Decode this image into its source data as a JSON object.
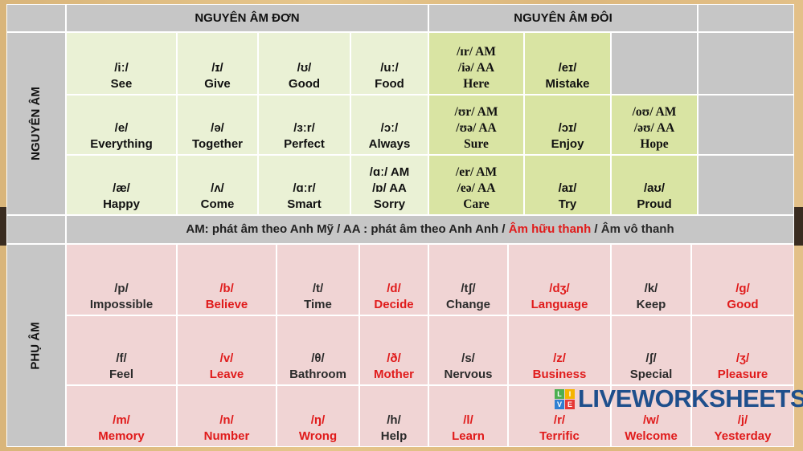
{
  "header": {
    "monophthongs": "NGUYÊN ÂM ĐƠN",
    "diphthongs": "NGUYÊN ÂM ĐÔI"
  },
  "side_labels": {
    "vowels": "NGUYÊN ÂM",
    "consonants": "PHỤ ÂM"
  },
  "vowels": [
    [
      {
        "lines": [
          "/iː/",
          "See"
        ]
      },
      {
        "lines": [
          "/ɪ/",
          "Give"
        ]
      },
      {
        "lines": [
          "/ʊ/",
          "Good"
        ]
      },
      {
        "lines": [
          "/uː/",
          "Food"
        ]
      },
      {
        "lines": [
          "/ɪr/ AM",
          "/iə/ AA",
          "Here"
        ],
        "serif": true
      },
      {
        "lines": [
          "/eɪ/",
          "Mistake"
        ]
      },
      null
    ],
    [
      {
        "lines": [
          "/e/",
          "Everything"
        ]
      },
      {
        "lines": [
          "/ə/",
          "Together"
        ]
      },
      {
        "lines": [
          "/ɜːr/",
          "Perfect"
        ]
      },
      {
        "lines": [
          "/ɔː/",
          "Always"
        ]
      },
      {
        "lines": [
          "/ʊr/ AM",
          "/ʊə/ AA",
          "Sure"
        ],
        "serif": true
      },
      {
        "lines": [
          "/ɔɪ/",
          "Enjoy"
        ]
      },
      {
        "lines": [
          "/oʊ/ AM",
          "/əʊ/ AA",
          "Hope"
        ],
        "serif": true
      }
    ],
    [
      {
        "lines": [
          "/æ/",
          "Happy"
        ]
      },
      {
        "lines": [
          "/ʌ/",
          "Come"
        ]
      },
      {
        "lines": [
          "/ɑːr/",
          "Smart"
        ]
      },
      {
        "lines": [
          "/ɑː/ AM",
          "/ɒ/ AA",
          "Sorry"
        ]
      },
      {
        "lines": [
          "/er/ AM",
          "/eə/ AA",
          "Care"
        ],
        "serif": true
      },
      {
        "lines": [
          "/aɪ/",
          "Try"
        ]
      },
      {
        "lines": [
          "/aʊ/",
          "Proud"
        ]
      }
    ]
  ],
  "note": {
    "part1": "AM: phát âm theo Anh Mỹ / AA : phát âm theo Anh Anh / ",
    "voiced": "Âm hữu thanh",
    "sep": " / ",
    "voiceless": "Âm vô thanh"
  },
  "consonants": [
    [
      {
        "ipa": "/p/",
        "word": "Impossible",
        "voiced": false
      },
      {
        "ipa": "/b/",
        "word": "Believe",
        "voiced": true
      },
      {
        "ipa": "/t/",
        "word": "Time",
        "voiced": false
      },
      {
        "ipa": "/d/",
        "word": "Decide",
        "voiced": true
      },
      {
        "ipa": "/tʃ/",
        "word": "Change",
        "voiced": false
      },
      {
        "ipa": "/dʒ/",
        "word": "Language",
        "voiced": true
      },
      {
        "ipa": "/k/",
        "word": "Keep",
        "voiced": false
      },
      {
        "ipa": "/g/",
        "word": "Good",
        "voiced": true
      }
    ],
    [
      {
        "ipa": "/f/",
        "word": "Feel",
        "voiced": false
      },
      {
        "ipa": "/v/",
        "word": "Leave",
        "voiced": true
      },
      {
        "ipa": "/θ/",
        "word": "Bathroom",
        "voiced": false
      },
      {
        "ipa": "/ð/",
        "word": "Mother",
        "voiced": true
      },
      {
        "ipa": "/s/",
        "word": "Nervous",
        "voiced": false
      },
      {
        "ipa": "/z/",
        "word": "Business",
        "voiced": true
      },
      {
        "ipa": "/ʃ/",
        "word": "Special",
        "voiced": false
      },
      {
        "ipa": "/ʒ/",
        "word": "Pleasure",
        "voiced": true
      }
    ],
    [
      {
        "ipa": "/m/",
        "word": "Memory",
        "voiced": true
      },
      {
        "ipa": "/n/",
        "word": "Number",
        "voiced": true
      },
      {
        "ipa": "/ŋ/",
        "word": "Wrong",
        "voiced": true
      },
      {
        "ipa": "/h/",
        "word": "Help",
        "voiced": false
      },
      {
        "ipa": "/l/",
        "word": "Learn",
        "voiced": true
      },
      {
        "ipa": "/r/",
        "word": "Terrific",
        "voiced": true
      },
      {
        "ipa": "/w/",
        "word": "Welcome",
        "voiced": true
      },
      {
        "ipa": "/j/",
        "word": "Yesterday",
        "voiced": true
      }
    ]
  ],
  "watermark": {
    "text": "LIVEWORKSHEETS",
    "tiles": [
      "L",
      "I",
      "V",
      "E"
    ]
  },
  "colors": {
    "voiced": "#e01b1b",
    "voiceless": "#2b2b2b",
    "monophthong_bg": "#eaf1d5",
    "diphthong_bg": "#d9e4a3",
    "consonant_bg": "#f0d4d4",
    "header_bg": "#c6c6c6"
  }
}
